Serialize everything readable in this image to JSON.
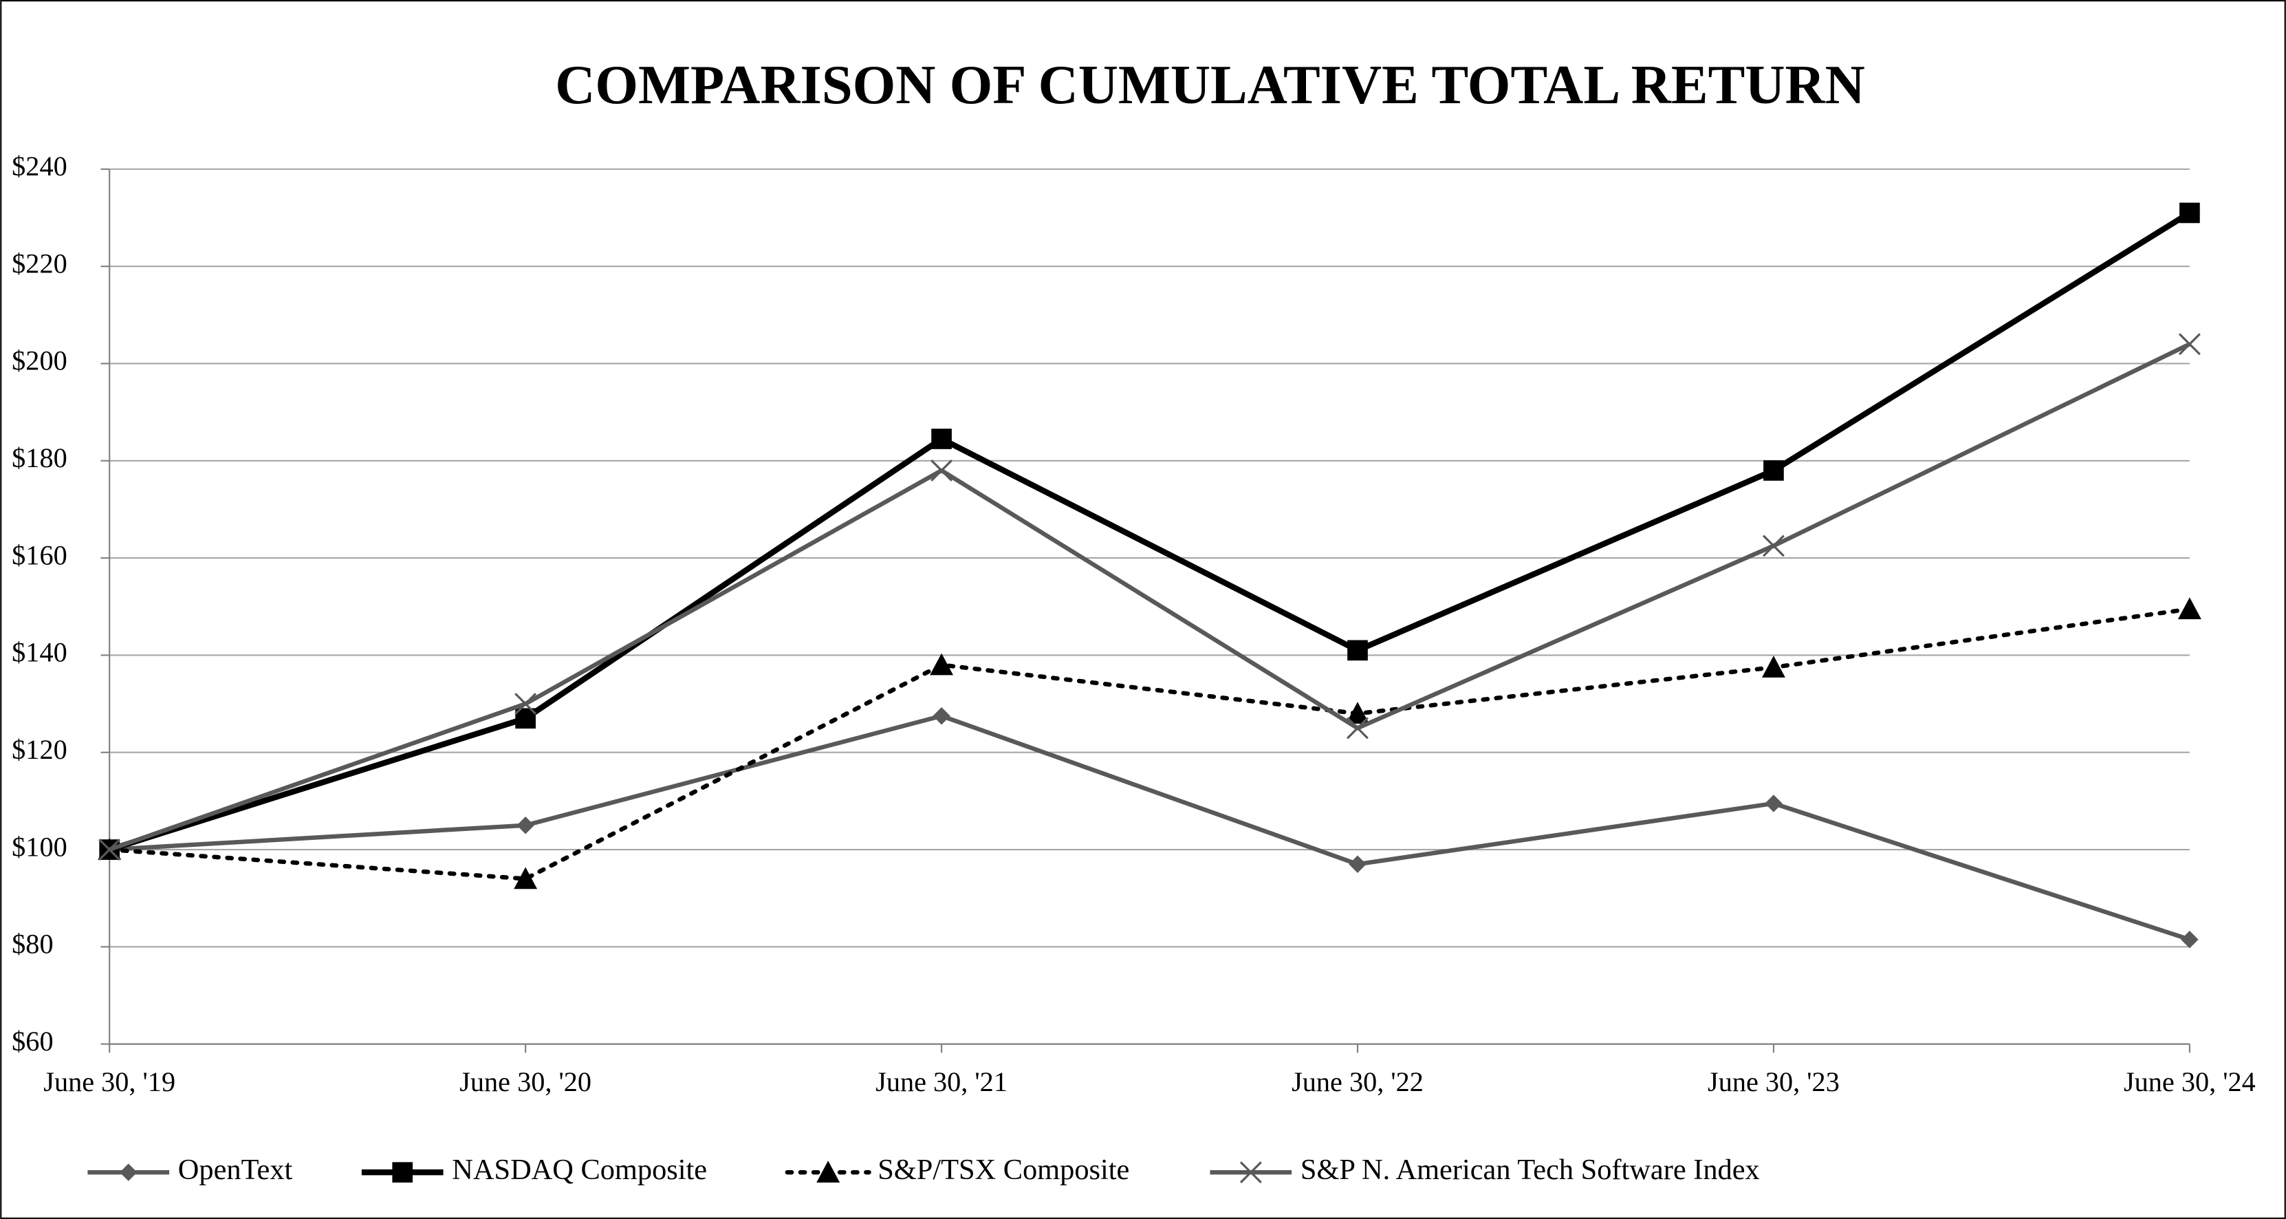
{
  "chart_data": {
    "type": "line",
    "title": "COMPARISON OF CUMULATIVE TOTAL RETURN",
    "categories": [
      "June 30, '19",
      "June 30, '20",
      "June 30, '21",
      "June 30, '22",
      "June 30, '23",
      "June 30, '24"
    ],
    "ylim": [
      60,
      240
    ],
    "yticks": [
      {
        "value": 60,
        "label": "$60"
      },
      {
        "value": 80,
        "label": "$80"
      },
      {
        "value": 100,
        "label": "$100"
      },
      {
        "value": 120,
        "label": "$120"
      },
      {
        "value": 140,
        "label": "$140"
      },
      {
        "value": 160,
        "label": "$160"
      },
      {
        "value": 180,
        "label": "$180"
      },
      {
        "value": 200,
        "label": "$200"
      },
      {
        "value": 220,
        "label": "$220"
      },
      {
        "value": 240,
        "label": "$240"
      }
    ],
    "grid": true,
    "legend": "bottom",
    "series": [
      {
        "name": "OpenText",
        "color": "#595959",
        "marker": "diamond",
        "dashed": false,
        "values": [
          100,
          105,
          127.5,
          97,
          109.5,
          81.5
        ]
      },
      {
        "name": "NASDAQ Composite",
        "color": "#000000",
        "marker": "square",
        "dashed": false,
        "values": [
          100,
          127,
          184.5,
          141,
          178,
          231
        ]
      },
      {
        "name": "S&P/TSX Composite",
        "color": "#000000",
        "marker": "triangle",
        "dashed": true,
        "values": [
          100,
          94,
          138,
          128,
          137.5,
          149.5
        ]
      },
      {
        "name": "S&P N. American Tech Software Index",
        "color": "#595959",
        "marker": "x",
        "dashed": false,
        "values": [
          100,
          130,
          178,
          125,
          162.5,
          204
        ]
      }
    ]
  }
}
